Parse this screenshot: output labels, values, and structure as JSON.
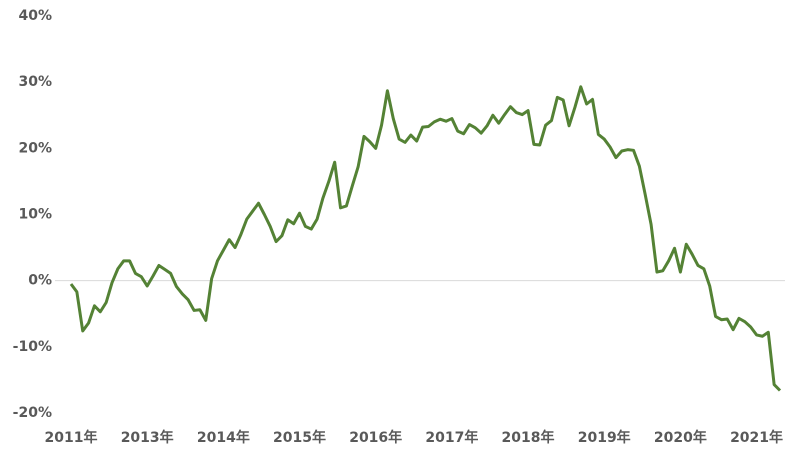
{
  "chart_data": {
    "type": "line",
    "categories": [
      "2011年",
      null,
      null,
      null,
      null,
      null,
      null,
      null,
      null,
      null,
      null,
      null,
      null,
      "2013年",
      null,
      null,
      null,
      null,
      null,
      null,
      null,
      null,
      null,
      null,
      null,
      null,
      "2014年",
      null,
      null,
      null,
      null,
      null,
      null,
      null,
      null,
      null,
      null,
      null,
      null,
      "2015年",
      null,
      null,
      null,
      null,
      null,
      null,
      null,
      null,
      null,
      null,
      null,
      null,
      "2016年",
      null,
      null,
      null,
      null,
      null,
      null,
      null,
      null,
      null,
      null,
      null,
      null,
      "2017年",
      null,
      null,
      null,
      null,
      null,
      null,
      null,
      null,
      null,
      null,
      null,
      null,
      "2018年",
      null,
      null,
      null,
      null,
      null,
      null,
      null,
      null,
      null,
      null,
      null,
      null,
      "2019年",
      null,
      null,
      null,
      null,
      null,
      null,
      null,
      null,
      null,
      null,
      null,
      null,
      "2020年",
      null,
      null,
      null,
      null,
      null,
      null,
      null,
      null,
      null,
      null,
      null,
      null,
      "2021年",
      null,
      null,
      null,
      null
    ],
    "values": [
      -0.5,
      -1.7,
      -7.6,
      -6.4,
      -3.8,
      -4.7,
      -3.3,
      -0.3,
      1.8,
      3.0,
      3.0,
      1.1,
      0.6,
      -0.8,
      0.7,
      2.3,
      1.7,
      1.1,
      -0.9,
      -2.0,
      -2.9,
      -4.5,
      -4.4,
      -6.0,
      0.3,
      3.0,
      4.6,
      6.2,
      5.0,
      7.0,
      9.3,
      10.5,
      11.7,
      10.0,
      8.2,
      5.9,
      6.8,
      9.2,
      8.6,
      10.2,
      8.2,
      7.8,
      9.3,
      12.5,
      15.0,
      17.9,
      11.0,
      11.3,
      14.3,
      17.2,
      21.8,
      21.0,
      20.0,
      23.5,
      28.7,
      24.5,
      21.4,
      20.9,
      22.0,
      21.1,
      23.2,
      23.3,
      24.0,
      24.4,
      24.1,
      24.5,
      22.6,
      22.2,
      23.6,
      23.1,
      22.3,
      23.4,
      25.0,
      23.8,
      25.1,
      26.3,
      25.4,
      25.1,
      25.7,
      20.6,
      20.5,
      23.5,
      24.2,
      27.7,
      27.3,
      23.4,
      26.2,
      29.3,
      26.7,
      27.4,
      22.1,
      21.4,
      20.2,
      18.6,
      19.6,
      19.8,
      19.7,
      17.3,
      13.0,
      8.5,
      1.3,
      1.5,
      3.0,
      4.9,
      1.3,
      5.5,
      4.0,
      2.3,
      1.8,
      -0.8,
      -5.4,
      -5.9,
      -5.8,
      -7.4,
      -5.7,
      -6.2,
      -7.0,
      -8.2,
      -8.4,
      -7.8,
      -15.7,
      -16.6
    ],
    "color": "#548235",
    "ylim": [
      -20,
      40
    ],
    "yticks": [
      {
        "value": 40,
        "label": "40%"
      },
      {
        "value": 30,
        "label": "30%"
      },
      {
        "value": 20,
        "label": "20%"
      },
      {
        "value": 10,
        "label": "10%"
      },
      {
        "value": 0,
        "label": "0%"
      },
      {
        "value": -10,
        "label": "-10%"
      },
      {
        "value": -20,
        "label": "-20%"
      }
    ]
  }
}
